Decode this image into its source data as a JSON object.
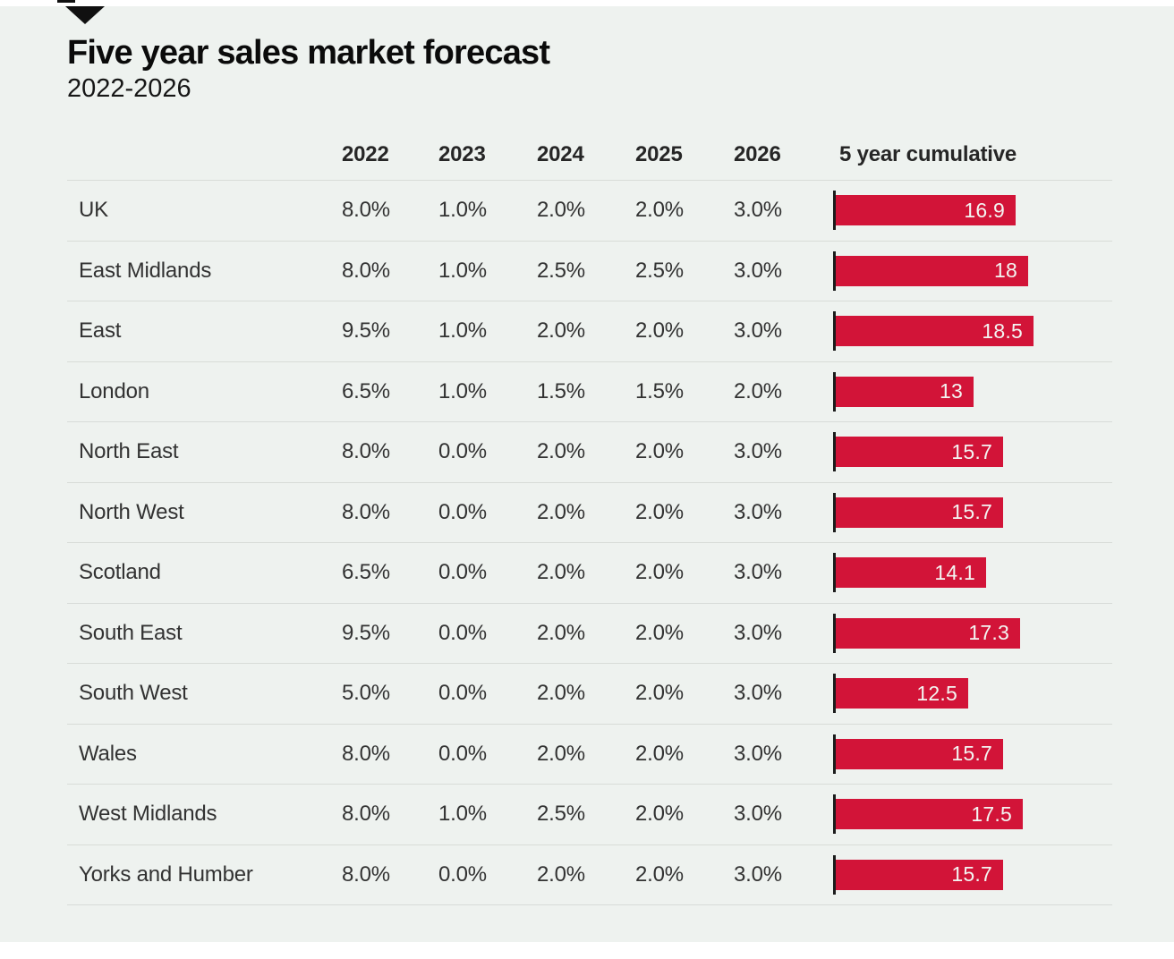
{
  "header": {
    "marker": "triangle-down"
  },
  "colors": {
    "panel_background": "#eef2ef",
    "bar_red": "#d21438",
    "bar_label": "#f3f5f2",
    "divider": "#d8dcd8",
    "marker_black": "#101010"
  },
  "chart_data": {
    "type": "table",
    "title": "Five year sales market forecast",
    "subtitle": "2022-2026",
    "columns": [
      "",
      "2022",
      "2023",
      "2024",
      "2025",
      "2026",
      "5 year cumulative"
    ],
    "unit": "%",
    "rows": [
      {
        "region": "UK",
        "yearly": [
          8.0,
          1.0,
          2.0,
          2.0,
          3.0
        ],
        "cumulative": 16.9
      },
      {
        "region": "East Midlands",
        "yearly": [
          8.0,
          1.0,
          2.5,
          2.5,
          3.0
        ],
        "cumulative": 18
      },
      {
        "region": "East",
        "yearly": [
          9.5,
          1.0,
          2.0,
          2.0,
          3.0
        ],
        "cumulative": 18.5
      },
      {
        "region": "London",
        "yearly": [
          6.5,
          1.0,
          1.5,
          1.5,
          2.0
        ],
        "cumulative": 13
      },
      {
        "region": "North East",
        "yearly": [
          8.0,
          0.0,
          2.0,
          2.0,
          3.0
        ],
        "cumulative": 15.7
      },
      {
        "region": "North West",
        "yearly": [
          8.0,
          0.0,
          2.0,
          2.0,
          3.0
        ],
        "cumulative": 15.7
      },
      {
        "region": "Scotland",
        "yearly": [
          6.5,
          0.0,
          2.0,
          2.0,
          3.0
        ],
        "cumulative": 14.1
      },
      {
        "region": "South East",
        "yearly": [
          9.5,
          0.0,
          2.0,
          2.0,
          3.0
        ],
        "cumulative": 17.3
      },
      {
        "region": "South West",
        "yearly": [
          5.0,
          0.0,
          2.0,
          2.0,
          3.0
        ],
        "cumulative": 12.5
      },
      {
        "region": "Wales",
        "yearly": [
          8.0,
          0.0,
          2.0,
          2.0,
          3.0
        ],
        "cumulative": 15.7
      },
      {
        "region": "West Midlands",
        "yearly": [
          8.0,
          1.0,
          2.5,
          2.0,
          3.0
        ],
        "cumulative": 17.5
      },
      {
        "region": "Yorks and Humber",
        "yearly": [
          8.0,
          0.0,
          2.0,
          2.0,
          3.0
        ],
        "cumulative": 15.7
      }
    ],
    "bar": {
      "color": "#d21438",
      "value_label_color": "#f3f5f2",
      "axis_max": 18.5,
      "orientation": "horizontal"
    },
    "layout": {
      "legend": false,
      "grid": "row-dividers",
      "value_labels": "inside-end"
    }
  }
}
